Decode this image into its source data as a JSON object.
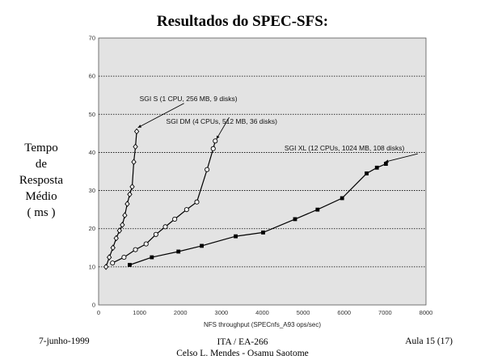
{
  "slide": {
    "title": "Resultados do SPEC-SFS:",
    "ylabel_lines": [
      "Tempo",
      "de",
      "Resposta",
      "Médio",
      "( ms )"
    ]
  },
  "footer": {
    "date": "7-junho-1999",
    "course": "ITA / EA-266",
    "authors": "Celso L. Mendes - Osamu Saotome",
    "page": "Aula 15 (17)"
  },
  "chart_data": {
    "type": "line",
    "title": "",
    "xlabel": "NFS throughput (SPECnfs_A93 ops/sec)",
    "ylabel": "Tempo de Resposta Médio ( ms )",
    "xlim": [
      0,
      8000
    ],
    "ylim": [
      0,
      70
    ],
    "xticks": [
      0,
      1000,
      2000,
      3000,
      4000,
      5000,
      6000,
      7000,
      8000
    ],
    "yticks": [
      0,
      10,
      20,
      30,
      40,
      50,
      60,
      70
    ],
    "grid": "horizontal-dotted",
    "background": "#e3e3e3",
    "series": [
      {
        "name": "SGI S (1 CPU, 256 MB, 9 disks)",
        "marker": "diamond",
        "x": [
          180,
          260,
          350,
          430,
          510,
          580,
          640,
          700,
          760,
          820,
          860,
          900,
          930
        ],
        "y": [
          10,
          12.5,
          15,
          17.5,
          19.5,
          21,
          23.5,
          26.5,
          29,
          31,
          37.5,
          41.5,
          45.5
        ],
        "label_xy": [
          1000,
          53.5
        ],
        "arrow_to": [
          960,
          46.5
        ]
      },
      {
        "name": "SGI DM (4 CPUs, 512 MB, 36 disks)",
        "marker": "circle",
        "x": [
          340,
          620,
          900,
          1160,
          1400,
          1630,
          1860,
          2150,
          2400,
          2650,
          2800,
          2850
        ],
        "y": [
          11,
          12.5,
          14.5,
          16,
          18.5,
          20.5,
          22.5,
          25,
          27,
          35.5,
          41,
          43
        ],
        "label_xy": [
          1650,
          47.5
        ],
        "arrow_to": [
          2880,
          43.5
        ]
      },
      {
        "name": "SGI XL (12 CPUs, 1024 MB, 108 disks)",
        "marker": "square",
        "x": [
          760,
          1300,
          1950,
          2520,
          3350,
          4020,
          4800,
          5350,
          5950,
          6550,
          6800,
          7020
        ],
        "y": [
          10.5,
          12.5,
          14,
          15.5,
          18,
          19,
          22.5,
          25,
          28,
          34.5,
          36,
          37
        ],
        "label_xy": [
          4540,
          40.5
        ],
        "arrow_to": [
          7000,
          37.5
        ]
      }
    ]
  }
}
